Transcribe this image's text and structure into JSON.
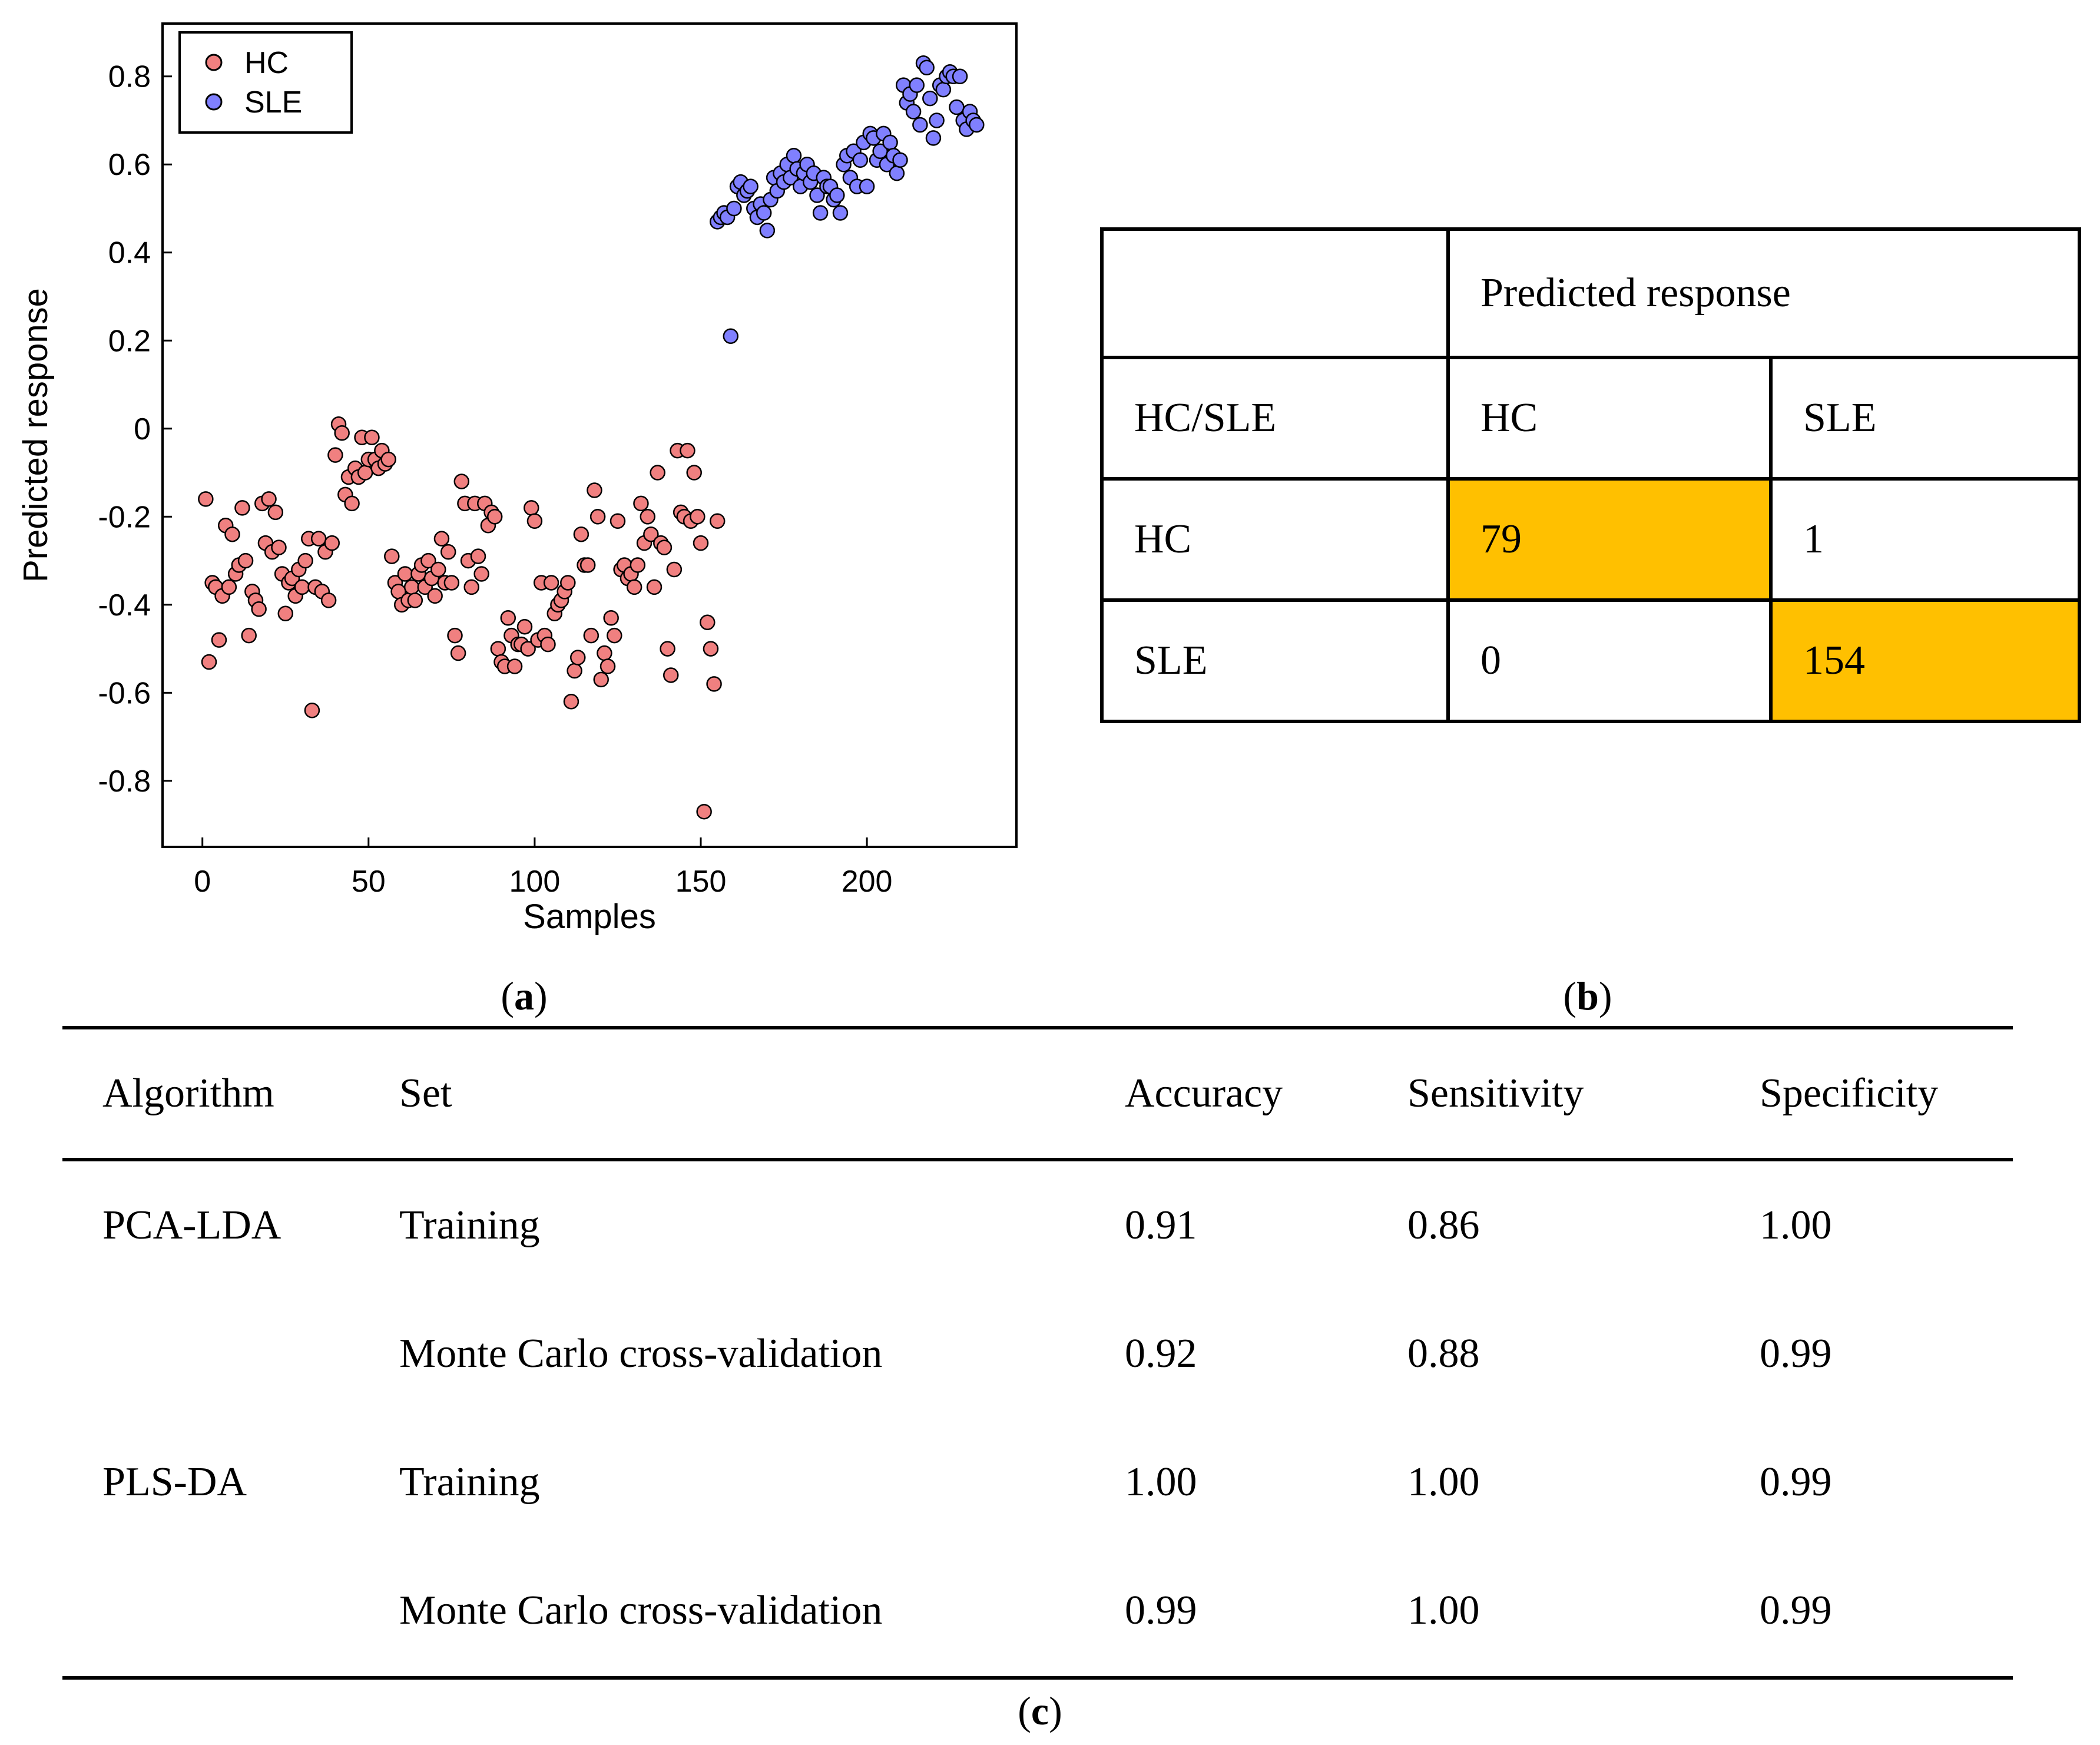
{
  "chart_data": {
    "type": "scatter",
    "xlabel": "Samples",
    "ylabel": "Predicted response",
    "xlim": [
      -12,
      245
    ],
    "ylim": [
      -0.95,
      0.92
    ],
    "xticks": [
      0,
      50,
      100,
      150,
      200
    ],
    "yticks": [
      -0.8,
      -0.6,
      -0.4,
      -0.2,
      0,
      0.2,
      0.4,
      0.6,
      0.8
    ],
    "ytick_labels": [
      "-0.8",
      "-0.6",
      "-0.4",
      "-0.2",
      "0",
      "0.2",
      "0.4",
      "0.6",
      "0.8"
    ],
    "legend_position": "top-left",
    "series": [
      {
        "name": "HC",
        "color": "#f08080",
        "x": [
          1,
          2,
          3,
          4,
          5,
          6,
          7,
          8,
          9,
          10,
          11,
          12,
          13,
          14,
          15,
          16,
          17,
          18,
          19,
          20,
          21,
          22,
          23,
          24,
          25,
          26,
          27,
          28,
          29,
          30,
          31,
          32,
          33,
          34,
          35,
          36,
          37,
          38,
          39,
          40,
          41,
          42,
          43,
          44,
          45,
          46,
          47,
          48,
          49,
          50,
          51,
          52,
          53,
          54,
          55,
          56,
          57,
          58,
          59,
          60,
          61,
          62,
          63,
          64,
          65,
          66,
          67,
          68,
          69,
          70,
          71,
          72,
          73,
          74,
          75,
          76,
          77,
          78,
          79,
          80,
          81,
          82,
          83,
          84,
          85,
          86,
          87,
          88,
          89,
          90,
          91,
          92,
          93,
          94,
          95,
          96,
          97,
          98,
          99,
          100,
          101,
          102,
          103,
          104,
          105,
          106,
          107,
          108,
          109,
          110,
          111,
          112,
          113,
          114,
          115,
          116,
          117,
          118,
          119,
          120,
          121,
          122,
          123,
          124,
          125,
          126,
          127,
          128,
          129,
          130,
          131,
          132,
          133,
          134,
          135,
          136,
          137,
          138,
          139,
          140,
          141,
          142,
          143,
          144,
          145,
          146,
          147,
          148,
          149,
          150,
          151,
          152,
          153,
          154,
          155
        ],
        "y": [
          -0.16,
          -0.53,
          -0.35,
          -0.36,
          -0.48,
          -0.38,
          -0.22,
          -0.36,
          -0.24,
          -0.33,
          -0.31,
          -0.18,
          -0.3,
          -0.47,
          -0.37,
          -0.39,
          -0.41,
          -0.17,
          -0.26,
          -0.16,
          -0.28,
          -0.19,
          -0.27,
          -0.33,
          -0.42,
          -0.35,
          -0.34,
          -0.38,
          -0.32,
          -0.36,
          -0.3,
          -0.25,
          -0.64,
          -0.36,
          -0.25,
          -0.37,
          -0.28,
          -0.39,
          -0.26,
          -0.06,
          0.01,
          -0.01,
          -0.15,
          -0.11,
          -0.17,
          -0.09,
          -0.11,
          -0.02,
          -0.1,
          -0.07,
          -0.02,
          -0.07,
          -0.09,
          -0.05,
          -0.08,
          -0.07,
          -0.29,
          -0.35,
          -0.37,
          -0.4,
          -0.33,
          -0.39,
          -0.36,
          -0.39,
          -0.33,
          -0.31,
          -0.36,
          -0.3,
          -0.34,
          -0.38,
          -0.32,
          -0.25,
          -0.35,
          -0.28,
          -0.35,
          -0.47,
          -0.51,
          -0.12,
          -0.17,
          -0.3,
          -0.36,
          -0.17,
          -0.29,
          -0.33,
          -0.17,
          -0.22,
          -0.19,
          -0.2,
          -0.5,
          -0.53,
          -0.54,
          -0.43,
          -0.47,
          -0.54,
          -0.49,
          -0.49,
          -0.45,
          -0.5,
          -0.18,
          -0.21,
          -0.48,
          -0.35,
          -0.47,
          -0.49,
          -0.35,
          -0.42,
          -0.4,
          -0.39,
          -0.37,
          -0.35,
          -0.62,
          -0.55,
          -0.52,
          -0.24,
          -0.31,
          -0.31,
          -0.47,
          -0.14,
          -0.2,
          -0.57,
          -0.51,
          -0.54,
          -0.43,
          -0.47,
          -0.21,
          -0.32,
          -0.31,
          -0.34,
          -0.33,
          -0.36,
          -0.31,
          -0.17,
          -0.26,
          -0.2,
          -0.24,
          -0.36,
          -0.1,
          -0.26,
          -0.27,
          -0.5,
          -0.56,
          -0.32,
          -0.05,
          -0.19,
          -0.2,
          -0.05,
          -0.21,
          -0.1,
          -0.2,
          -0.26,
          -0.87,
          -0.44,
          -0.5,
          -0.58,
          -0.21
        ]
      },
      {
        "name": "SLE",
        "color": "#8080ff",
        "x": [
          155,
          156,
          157,
          158,
          159,
          160,
          161,
          162,
          163,
          164,
          165,
          166,
          167,
          168,
          169,
          170,
          171,
          172,
          173,
          174,
          175,
          176,
          177,
          178,
          179,
          180,
          181,
          182,
          183,
          184,
          185,
          186,
          187,
          188,
          189,
          190,
          191,
          192,
          193,
          194,
          195,
          196,
          197,
          198,
          199,
          200,
          201,
          202,
          203,
          204,
          205,
          206,
          207,
          208,
          209,
          210,
          211,
          212,
          213,
          214,
          215,
          216,
          217,
          218,
          219,
          220,
          221,
          222,
          223,
          224,
          225,
          226,
          227,
          228,
          229,
          230,
          231,
          232,
          233
        ],
        "y": [
          0.47,
          0.48,
          0.49,
          0.48,
          0.21,
          0.5,
          0.55,
          0.56,
          0.53,
          0.54,
          0.55,
          0.5,
          0.48,
          0.51,
          0.49,
          0.45,
          0.52,
          0.57,
          0.54,
          0.58,
          0.56,
          0.6,
          0.57,
          0.62,
          0.59,
          0.55,
          0.58,
          0.6,
          0.56,
          0.58,
          0.53,
          0.49,
          0.57,
          0.55,
          0.55,
          0.52,
          0.53,
          0.49,
          0.6,
          0.62,
          0.57,
          0.63,
          0.55,
          0.61,
          0.65,
          0.55,
          0.67,
          0.66,
          0.61,
          0.63,
          0.67,
          0.6,
          0.65,
          0.62,
          0.58,
          0.61,
          0.78,
          0.74,
          0.76,
          0.72,
          0.78,
          0.69,
          0.83,
          0.82,
          0.75,
          0.66,
          0.7,
          0.78,
          0.77,
          0.8,
          0.81,
          0.8,
          0.73,
          0.8,
          0.7,
          0.68,
          0.72,
          0.7,
          0.69
        ]
      }
    ]
  },
  "captions": {
    "a": "a",
    "b": "b",
    "c": "c"
  },
  "confusion_matrix": {
    "header": "Predicted response",
    "corner_label": "HC/SLE",
    "columns": [
      "HC",
      "SLE"
    ],
    "rows": [
      {
        "label": "HC",
        "values": [
          "79",
          "1"
        ]
      },
      {
        "label": "SLE",
        "values": [
          "0",
          "154"
        ]
      }
    ],
    "highlight_color": "#ffc000"
  },
  "metrics_table": {
    "headers": [
      "Algorithm",
      "Set",
      "Accuracy",
      "Sensitivity",
      "Specificity"
    ],
    "rows": [
      [
        "PCA-LDA",
        "Training",
        "0.91",
        "0.86",
        "1.00"
      ],
      [
        "",
        "Monte Carlo cross-validation",
        "0.92",
        "0.88",
        "0.99"
      ],
      [
        "PLS-DA",
        "Training",
        "1.00",
        "1.00",
        "0.99"
      ],
      [
        "",
        "Monte Carlo cross-validation",
        "0.99",
        "1.00",
        "0.99"
      ]
    ]
  }
}
